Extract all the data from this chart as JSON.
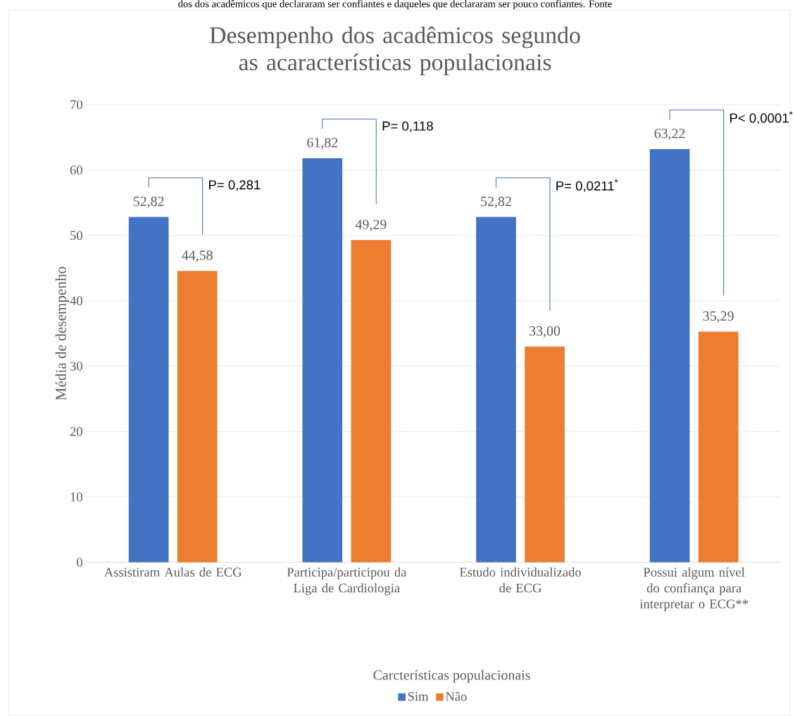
{
  "chart_data": {
    "type": "bar",
    "title": "Desempenho dos acadêmicos segundo as acaracterísticas populacionais",
    "ylabel": "Média de desempenho",
    "legend_title": "Carcterísticas populacionais",
    "categories": [
      "Assistiram Aulas de ECG",
      "Participa/participou da Liga de Cardiologia",
      "Estudo individualizado de ECG",
      "Possui algum nível do confiança para interpretar o ECG**"
    ],
    "series": [
      {
        "name": "Sim",
        "color": "#4472c4",
        "values": [
          52.82,
          61.82,
          52.82,
          63.22
        ],
        "value_labels": [
          "52,82",
          "61,82",
          "52,82",
          "63,22"
        ]
      },
      {
        "name": "Não",
        "color": "#ed7d31",
        "values": [
          44.58,
          49.29,
          33.0,
          35.29
        ],
        "value_labels": [
          "44,58",
          "49,29",
          "33,00",
          "35,29"
        ]
      }
    ],
    "ylim": [
      0,
      70
    ],
    "yticks": [
      0,
      10,
      20,
      30,
      40,
      50,
      60,
      70
    ],
    "grid": "y",
    "legend": "bottom",
    "annotations": [
      "P= 0,281",
      "P= 0,118",
      "P= 0,0211$^{*}$",
      "P< 0,0001$^{*}$",
      "dos dos acadêmicos que declararam ser confiantes e daqueles que declararam ser pouco confiantes. Fonte"
    ]
  }
}
